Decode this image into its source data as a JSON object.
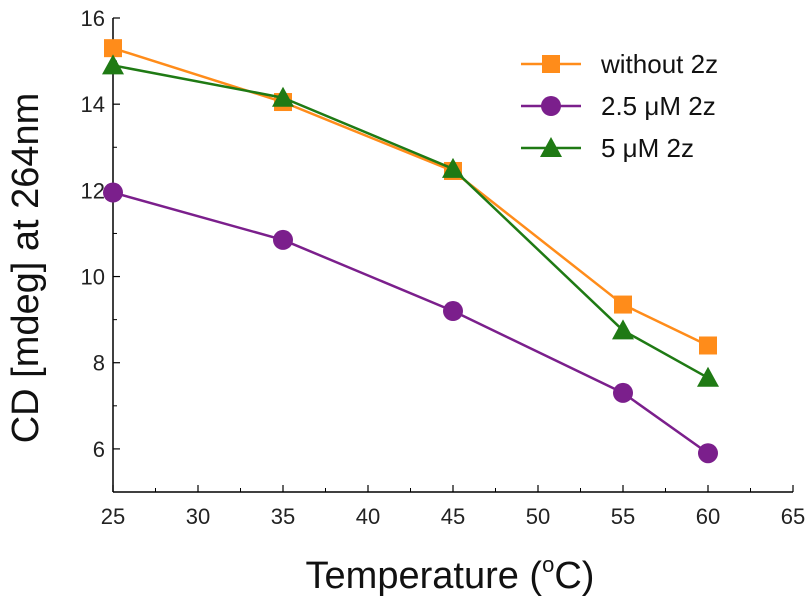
{
  "chart_data": {
    "type": "line",
    "xlabel": "Temperature (",
    "xlabel_sup": "o",
    "xlabel_unit": "C)",
    "ylabel": "CD [mdeg] at 264nm",
    "xlim": [
      25,
      65
    ],
    "ylim": [
      5,
      16
    ],
    "xticks": [
      25,
      30,
      35,
      40,
      45,
      50,
      55,
      60,
      65
    ],
    "yticks": [
      6,
      8,
      10,
      12,
      14,
      16
    ],
    "grid": false,
    "legend_position": "top-right",
    "series": [
      {
        "name": "without 2z",
        "color": "#FF8C1A",
        "marker": "square",
        "x": [
          25,
          35,
          45,
          55,
          60
        ],
        "y": [
          15.3,
          14.05,
          12.45,
          9.35,
          8.4
        ]
      },
      {
        "name": "2.5 μM 2z",
        "color": "#7B1F8C",
        "marker": "circle",
        "x": [
          25,
          35,
          45,
          55,
          60
        ],
        "y": [
          11.95,
          10.85,
          9.2,
          7.3,
          5.9
        ]
      },
      {
        "name": "5 μM 2z",
        "color": "#1F7A14",
        "marker": "triangle",
        "x": [
          25,
          35,
          45,
          55,
          60
        ],
        "y": [
          14.9,
          14.15,
          12.5,
          8.75,
          7.65
        ]
      }
    ]
  }
}
